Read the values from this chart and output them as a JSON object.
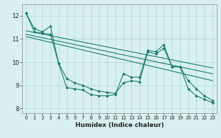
{
  "xlabel": "Humidex (Indice chaleur)",
  "bg_color": "#d8f0f0",
  "grid_color": "#b0dada",
  "line_color": "#1a7a6a",
  "xlim": [
    -0.5,
    23.5
  ],
  "ylim": [
    7.8,
    12.5
  ],
  "yticks": [
    8,
    9,
    10,
    11,
    12
  ],
  "xticks": [
    0,
    1,
    2,
    3,
    4,
    5,
    6,
    7,
    8,
    9,
    10,
    11,
    12,
    13,
    14,
    15,
    16,
    17,
    18,
    19,
    20,
    21,
    22,
    23
  ],
  "series1": {
    "x": [
      0,
      1,
      2,
      3,
      4,
      5,
      6,
      7,
      8,
      9,
      10,
      11,
      12,
      13,
      14,
      15,
      16,
      17,
      18,
      19,
      20,
      21,
      22,
      23
    ],
    "y": [
      12.1,
      11.45,
      11.3,
      11.55,
      9.95,
      8.9,
      8.85,
      8.8,
      8.6,
      8.55,
      8.55,
      8.6,
      9.5,
      9.35,
      9.35,
      10.5,
      10.45,
      10.75,
      9.8,
      9.8,
      8.85,
      8.55,
      8.4,
      8.25
    ]
  },
  "series2": {
    "x": [
      0,
      1,
      2,
      3,
      4,
      5,
      6,
      7,
      8,
      9,
      10,
      11,
      12,
      13,
      14,
      15,
      16,
      17,
      18,
      19,
      20,
      21,
      22,
      23
    ],
    "y": [
      12.1,
      11.3,
      11.25,
      11.2,
      9.95,
      9.3,
      9.1,
      9.0,
      8.85,
      8.75,
      8.7,
      8.65,
      9.1,
      9.2,
      9.15,
      10.45,
      10.35,
      10.6,
      9.8,
      9.8,
      9.2,
      8.85,
      8.55,
      8.35
    ]
  },
  "trend_lines": [
    {
      "x": [
        0,
        23
      ],
      "y": [
        11.35,
        9.75
      ]
    },
    {
      "x": [
        0,
        23
      ],
      "y": [
        11.2,
        9.5
      ]
    },
    {
      "x": [
        0,
        23
      ],
      "y": [
        11.1,
        9.2
      ]
    }
  ]
}
